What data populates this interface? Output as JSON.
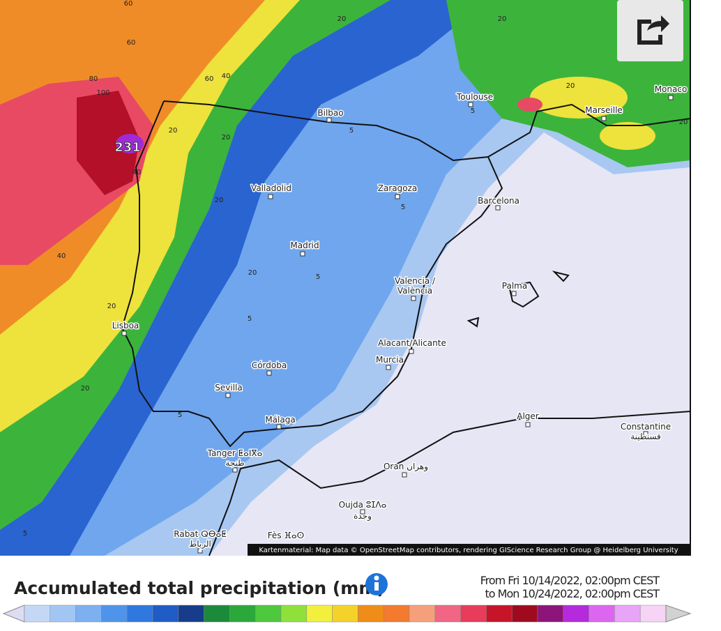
{
  "map": {
    "peak_label": "231",
    "contour_labels": [
      "60",
      "60",
      "80",
      "100",
      "60",
      "40",
      "40",
      "20",
      "20",
      "20",
      "20",
      "5",
      "5",
      "5",
      "5",
      "5",
      "20",
      "20",
      "20",
      "5",
      "20",
      "40",
      "20",
      "20",
      "5"
    ],
    "cities": [
      "Bilbao",
      "Toulouse",
      "Monaco",
      "Marseille",
      "Valladolid",
      "Zaragoza",
      "Barcelona",
      "Madrid",
      "Valencia /",
      "València",
      "Palma",
      "Lisboa",
      "Alacant/Alicante",
      "Córdoba",
      "Murcia",
      "Sevilla",
      "Málaga",
      "Alger",
      "Constantine",
      "قسنطينة",
      "Tanger ⵟⴰⵏⴳⴰ",
      "طنجة",
      "Oran وهران",
      "Oujda ⵓⵊⴷⴰ",
      "وجدة",
      "Rabat ⵕⴱⴰⵟ",
      "الرباط",
      "Fès ⴼⴰⵙ"
    ],
    "attribution": "Kartenmaterial: Map data © OpenStreetMap contributors, rendering GIScience Research Group @ Heidelberg University"
  },
  "legend": {
    "title": "Accumulated total precipitation (mm)",
    "period": [
      "From Fri 10/14/2022, 02:00pm CEST",
      "to Mon 10/24/2022, 02:00pm CEST"
    ],
    "colors": [
      "#dcdcf2",
      "#c4d8f6",
      "#a2c6f4",
      "#7cb0f0",
      "#4f94ea",
      "#2f78de",
      "#1f5cc6",
      "#173c8a",
      "#1b8a3a",
      "#2aa83a",
      "#4ec83c",
      "#90e03c",
      "#f2f03c",
      "#f4d22a",
      "#f08c18",
      "#f47a2e",
      "#f5a07a",
      "#f06684",
      "#e83c5a",
      "#c81428",
      "#a00a1e",
      "#8c147a",
      "#b42adc",
      "#dc66f0",
      "#e8a4f6",
      "#f6d4f6",
      "#d2d2d2"
    ]
  }
}
